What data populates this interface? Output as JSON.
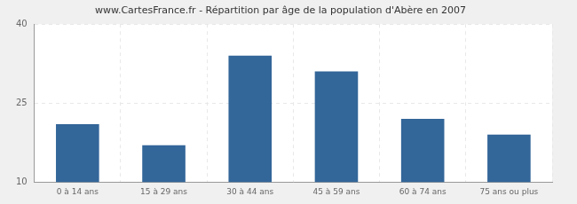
{
  "chart_data": {
    "type": "bar",
    "title": "www.CartesFrance.fr - Répartition par âge de la population d'Abère en 2007",
    "categories": [
      "0 à 14 ans",
      "15 à 29 ans",
      "30 à 44 ans",
      "45 à 59 ans",
      "60 à 74 ans",
      "75 ans ou plus"
    ],
    "values": [
      21,
      17,
      34,
      31,
      22,
      19
    ],
    "color": "#336699",
    "ylim": [
      10,
      40
    ],
    "yticks": [
      10,
      25,
      40
    ],
    "grid": true
  }
}
